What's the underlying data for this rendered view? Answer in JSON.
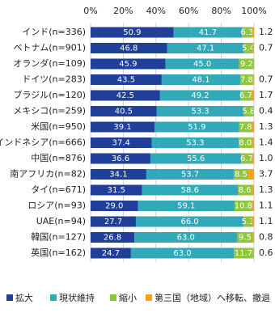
{
  "chart_data": {
    "type": "stacked-bar-horizontal",
    "categories": [
      "インド(n=336)",
      "ベトナム(n=901)",
      "オランダ(n=109)",
      "ドイツ(n=283)",
      "ブラジル(n=120)",
      "メキシコ(n=259)",
      "米国(n=950)",
      "インドネシア(n=666)",
      "中国(n=876)",
      "南アフリカ(n=82)",
      "タイ(n=671)",
      "ロシア(n=93)",
      "UAE(n=94)",
      "韓国(n=127)",
      "英国(n=162)"
    ],
    "series": [
      {
        "name": "拡大",
        "color": "#1f3f99",
        "values": [
          50.9,
          46.8,
          45.9,
          43.5,
          42.5,
          40.5,
          39.1,
          37.4,
          36.6,
          34.1,
          31.5,
          29.0,
          27.7,
          26.8,
          24.7
        ],
        "value_labels": [
          "50.9",
          "46.8",
          "45.9",
          "43.5",
          "42.5",
          "40.5",
          "39.1",
          "37.4",
          "36.6",
          "34.1",
          "31.5",
          "29.0",
          "27.7",
          "26.8",
          "24.7"
        ]
      },
      {
        "name": "現状維持",
        "color": "#31a9b8",
        "values": [
          41.7,
          47.1,
          45.0,
          48.1,
          49.2,
          53.3,
          51.9,
          53.3,
          55.6,
          53.7,
          58.6,
          59.1,
          66.0,
          63.0,
          63.0
        ],
        "value_labels": [
          "41.7",
          "47.1",
          "45.0",
          "48.1",
          "49.2",
          "53.3",
          "51.9",
          "53.3",
          "55.6",
          "53.7",
          "58.6",
          "59.1",
          "66.0",
          "63.0",
          "63.0"
        ]
      },
      {
        "name": "縮小",
        "color": "#8fc63f",
        "values": [
          6.3,
          5.4,
          9.2,
          7.8,
          6.7,
          5.8,
          7.8,
          8.0,
          6.7,
          8.5,
          8.6,
          10.8,
          5.3,
          9.5,
          11.7
        ],
        "value_labels": [
          "6.3",
          "5.4",
          "9.2",
          "7.8",
          "6.7",
          "5.8",
          "7.8",
          "8.0",
          "6.7",
          "8.5",
          "8.6",
          "10.8",
          "5.3",
          "9.5",
          "11.7"
        ]
      },
      {
        "name": "第三国（地域）へ移転、撤退",
        "color": "#f4a21c",
        "values": [
          1.2,
          0.7,
          null,
          0.7,
          1.7,
          0.4,
          1.3,
          1.4,
          1.0,
          3.7,
          1.3,
          1.1,
          1.1,
          0.8,
          0.6
        ],
        "value_labels": [
          "1.2",
          "0.7",
          null,
          "0.7",
          "1.7",
          "0.4",
          "1.3",
          "1.4",
          "1.0",
          "3.7",
          "1.3",
          "1.1",
          "1.1",
          "0.8",
          "0.6"
        ]
      }
    ],
    "xlim": [
      0,
      100
    ],
    "xticks": [
      {
        "value": 0,
        "label": "0%"
      },
      {
        "value": 20,
        "label": "20%"
      },
      {
        "value": 40,
        "label": "40%"
      },
      {
        "value": 60,
        "label": "60%"
      },
      {
        "value": 80,
        "label": "80%"
      },
      {
        "value": 100,
        "label": "100%"
      }
    ],
    "grid": true,
    "legend": "bottom"
  }
}
